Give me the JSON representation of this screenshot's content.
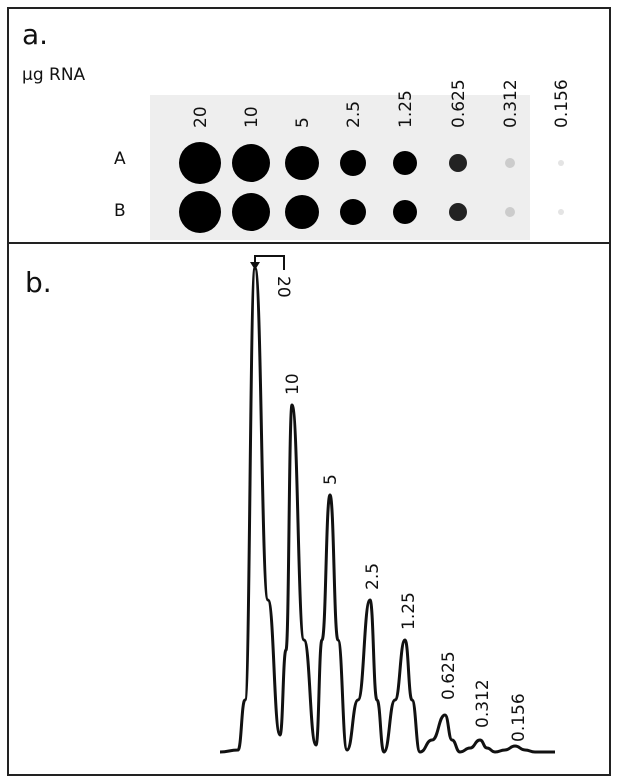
{
  "panel_a": {
    "label": "a.",
    "axis_label": "µg RNA",
    "concentrations": [
      "20",
      "10",
      "5",
      "2.5",
      "1.25",
      "0.625",
      "0.312",
      "0.156"
    ],
    "rows": [
      "A",
      "B"
    ]
  },
  "panel_b": {
    "label": "b.",
    "peak_labels": [
      "20",
      "10",
      "5",
      "2.5",
      "1.25",
      "0.625",
      "0.312",
      "0.156"
    ]
  }
}
